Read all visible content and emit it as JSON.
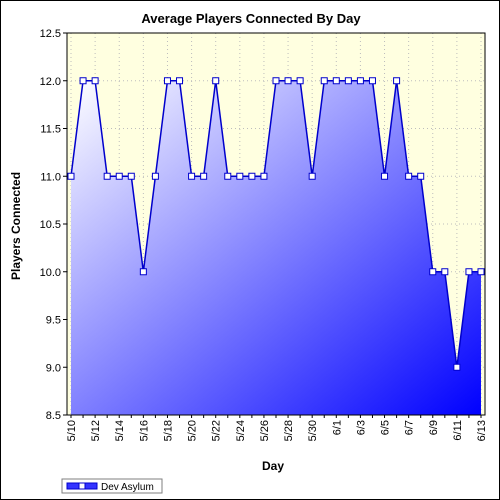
{
  "chart_data": {
    "type": "area",
    "title": "Average Players Connected By Day",
    "xlabel": "Day",
    "ylabel": "Players Connected",
    "ylim": [
      8.5,
      12.5
    ],
    "yticks": [
      "8.5",
      "9.0",
      "9.5",
      "10.0",
      "10.5",
      "11.0",
      "11.5",
      "12.0",
      "12.5"
    ],
    "categories": [
      "5/10",
      "5/11",
      "5/12",
      "5/13",
      "5/14",
      "5/15",
      "5/16",
      "5/17",
      "5/18",
      "5/19",
      "5/20",
      "5/21",
      "5/22",
      "5/23",
      "5/24",
      "5/25",
      "5/26",
      "5/27",
      "5/28",
      "5/29",
      "5/30",
      "5/31",
      "6/1",
      "6/2",
      "6/3",
      "6/4",
      "6/5",
      "6/6",
      "6/7",
      "6/8",
      "6/9",
      "6/10",
      "6/11",
      "6/12",
      "6/13"
    ],
    "tick_labels": [
      "5/10",
      "5/12",
      "5/14",
      "5/16",
      "5/18",
      "5/20",
      "5/22",
      "5/24",
      "5/26",
      "5/28",
      "5/30",
      "6/1",
      "6/3",
      "6/5",
      "6/7",
      "6/9",
      "6/11",
      "6/13"
    ],
    "series": [
      {
        "name": "Dev Asylum",
        "values": [
          11,
          12,
          12,
          11,
          11,
          11,
          10,
          11,
          12,
          12,
          11,
          11,
          12,
          11,
          11,
          11,
          11,
          12,
          12,
          12,
          11,
          12,
          12,
          12,
          12,
          12,
          11,
          12,
          11,
          11,
          10,
          10,
          9,
          10,
          10
        ]
      }
    ],
    "grid": true,
    "legend_position": "bottom-left",
    "colors": {
      "plot_background": "#ffffe0",
      "series_line": "#0000cc",
      "fill_light": "#ffffff",
      "fill_dark": "#0000ff",
      "grid": "#bdbdbd"
    }
  }
}
